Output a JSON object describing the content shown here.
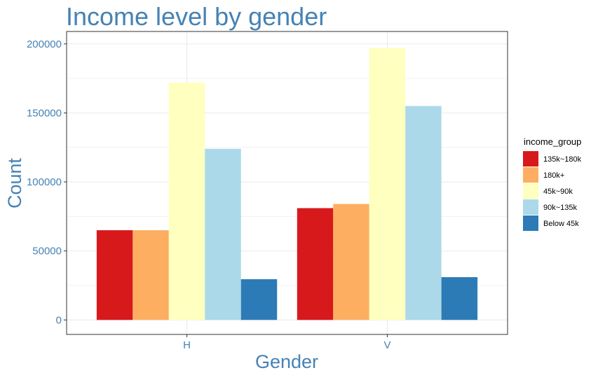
{
  "chart_data": {
    "type": "bar",
    "title": "Income level by gender",
    "xlabel": "Gender",
    "ylabel": "Count",
    "categories": [
      "H",
      "V"
    ],
    "series": [
      {
        "name": "135k~180k",
        "values": [
          65000,
          81000
        ],
        "color": "#d7191c"
      },
      {
        "name": "180k+",
        "values": [
          65000,
          84000
        ],
        "color": "#fdae61"
      },
      {
        "name": "45k~90k",
        "values": [
          172000,
          197000
        ],
        "color": "#ffffbf"
      },
      {
        "name": "90k~135k",
        "values": [
          124000,
          155000
        ],
        "color": "#abd9e9"
      },
      {
        "name": "Below 45k",
        "values": [
          29500,
          31000
        ],
        "color": "#2c7bb6"
      }
    ],
    "ylim": [
      -10500,
      209000
    ],
    "yticks": [
      0,
      50000,
      100000,
      150000,
      200000
    ],
    "ytick_labels": [
      "0",
      "50000",
      "100000",
      "150000",
      "200000"
    ],
    "legend_title": "income_group",
    "legend_position": "right",
    "grid": true
  },
  "colors": {
    "text_accent": "#4682b4",
    "grid": "#ebebeb",
    "panel_border": "#333333"
  }
}
